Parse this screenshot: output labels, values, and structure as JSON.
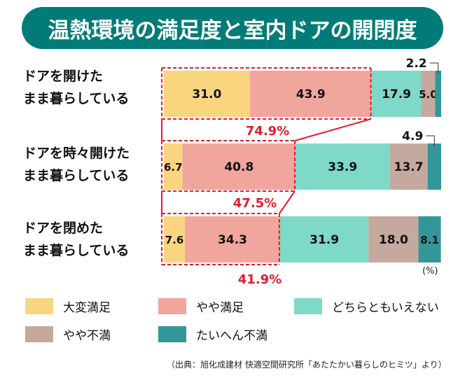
{
  "chart_data": {
    "type": "bar",
    "orientation": "horizontal-stacked-100",
    "title": "温熱環境の満足度と室内ドアの開閉度",
    "categories": [
      [
        "ドアを開けた",
        "まま暮らしている"
      ],
      [
        "ドアを時々開けた",
        "まま暮らしている"
      ],
      [
        "ドアを閉めた",
        "まま暮らしている"
      ]
    ],
    "series": [
      {
        "name": "大変満足",
        "color": "#f9d580",
        "values": [
          31.0,
          6.7,
          7.6
        ],
        "labels": [
          "31.0",
          "6.7",
          "7.6"
        ]
      },
      {
        "name": "やや満足",
        "color": "#f0a59d",
        "values": [
          43.9,
          40.8,
          34.3
        ],
        "labels": [
          "43.9",
          "40.8",
          "34.3"
        ]
      },
      {
        "name": "どちらともいえない",
        "color": "#7fd9c8",
        "values": [
          17.9,
          33.9,
          31.9
        ],
        "labels": [
          "17.9",
          "33.9",
          "31.9"
        ]
      },
      {
        "name": "やや不満",
        "color": "#c5a99e",
        "values": [
          5.0,
          13.7,
          18.0
        ],
        "labels": [
          "5.0",
          "13.7",
          "18.0"
        ]
      },
      {
        "name": "たいへん不満",
        "color": "#33979a",
        "values": [
          2.2,
          4.9,
          8.1
        ],
        "labels": [
          "2.2",
          "4.9",
          "8.1"
        ]
      }
    ],
    "satisfied_totals": [
      "74.9%",
      "47.5%",
      "41.9%"
    ],
    "satisfied_totals_values": [
      74.9,
      47.5,
      41.9
    ],
    "unit": "(%)",
    "xlim": [
      0,
      100
    ],
    "legend": "bottom",
    "highlight_color": "#e8192c"
  },
  "source": "（出典：旭化成建材 快適空間研究所「あたたかい暮らしのヒミツ」より）",
  "colors": {
    "title_bg": "#007b78",
    "text": "#111111"
  }
}
